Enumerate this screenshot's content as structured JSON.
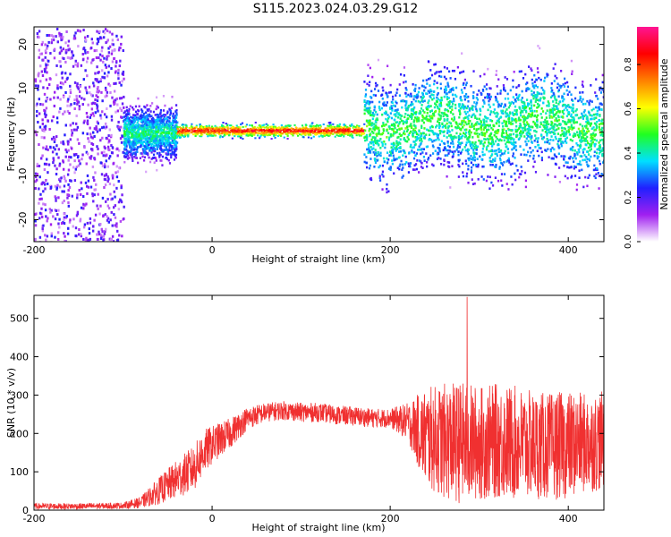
{
  "title": "S115.2023.024.03.29.G12",
  "chart_data": [
    {
      "type": "heatmap",
      "xlabel": "Height of straight line (km)",
      "ylabel": "Frequency (Hz)",
      "xlim": [
        -200,
        440
      ],
      "ylim": [
        -25,
        24
      ],
      "xticks": [
        -200,
        0,
        200,
        400
      ],
      "yticks": [
        -20,
        -10,
        0,
        10,
        20
      ],
      "colorbar": {
        "label": "Normalized spectral amplitude",
        "range": [
          0,
          0.97
        ],
        "ticks": [
          "0.0",
          "0.2",
          "0.4",
          "0.6",
          "0.8"
        ],
        "colors": [
          "#ffffff",
          "#a020f0",
          "#2020ff",
          "#00e0ff",
          "#20ff20",
          "#ffff00",
          "#ff8000",
          "#ff0000",
          "#ff1493"
        ]
      },
      "features": [
        {
          "region": [
            -200,
            -100
          ],
          "description_value": "broadband scatter",
          "freq_range": [
            -25,
            24
          ],
          "amplitude": 0.15
        },
        {
          "region": [
            -100,
            -40
          ],
          "freq_center": 0,
          "freq_spread": 4,
          "amplitude": 0.45
        },
        {
          "region": [
            -40,
            170
          ],
          "freq_center": 0.5,
          "freq_spread": 1,
          "amplitude": 0.9
        },
        {
          "region": [
            170,
            440
          ],
          "freq_center": 2,
          "freq_spread": 8,
          "amplitude": 0.5
        }
      ]
    },
    {
      "type": "line",
      "xlabel": "Height of straight line (km)",
      "ylabel": "SNR (10 * v/v)",
      "xlim": [
        -200,
        440
      ],
      "ylim": [
        0,
        560
      ],
      "xticks": [
        -200,
        0,
        200,
        400
      ],
      "yticks": [
        0,
        100,
        200,
        300,
        400,
        500
      ],
      "series": [
        {
          "color": "#f03030",
          "x": [
            -200,
            -150,
            -100,
            -80,
            -60,
            -40,
            -20,
            -10,
            0,
            20,
            40,
            60,
            80,
            100,
            120,
            140,
            160,
            180,
            200,
            220,
            240,
            260,
            280,
            300,
            320,
            340,
            360,
            380,
            400,
            420,
            440
          ],
          "y_mean": [
            10,
            10,
            12,
            20,
            50,
            80,
            110,
            150,
            170,
            200,
            240,
            255,
            260,
            255,
            255,
            248,
            245,
            240,
            240,
            230,
            190,
            180,
            175,
            175,
            180,
            175,
            170,
            165,
            170,
            175,
            180
          ],
          "y_spread": [
            8,
            8,
            8,
            15,
            35,
            50,
            60,
            60,
            50,
            40,
            30,
            25,
            25,
            25,
            25,
            25,
            25,
            25,
            25,
            50,
            130,
            150,
            160,
            150,
            150,
            150,
            140,
            140,
            140,
            130,
            130
          ],
          "y_peak": 556
        }
      ]
    }
  ]
}
